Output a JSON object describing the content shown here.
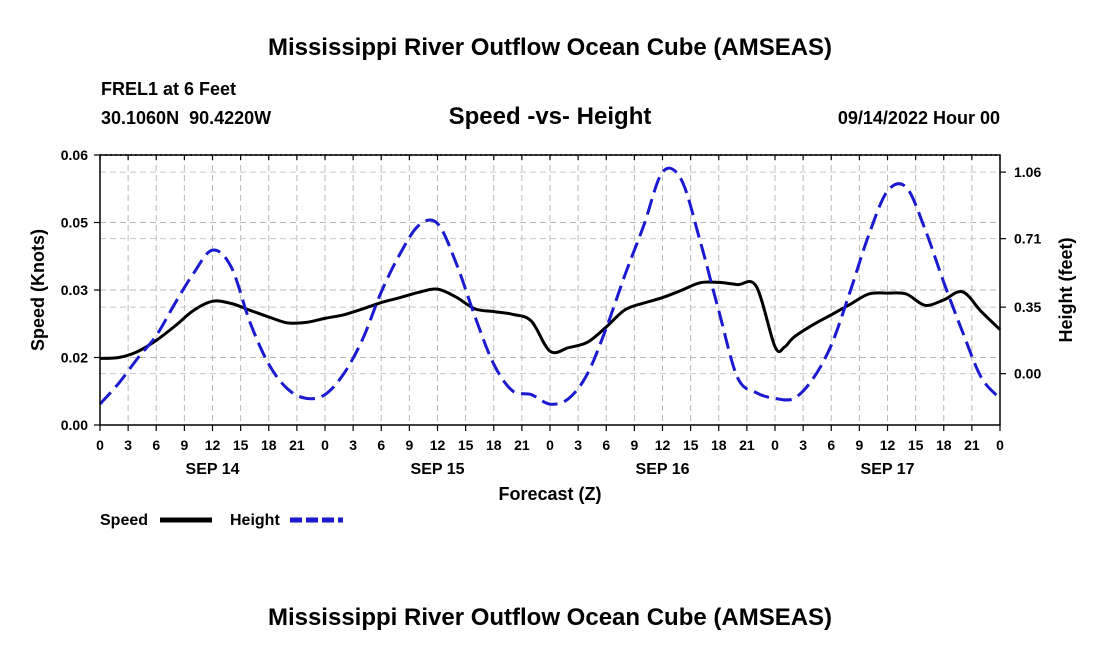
{
  "chart_data": {
    "type": "line",
    "title": "Mississippi River Outflow Ocean Cube (AMSEAS)",
    "footer_title": "Mississippi River Outflow Ocean Cube (AMSEAS)",
    "station": "FREL1 at 6 Feet",
    "coords": "30.1060N  90.4220W",
    "subtitle": "Speed -vs- Height",
    "datetime": "09/14/2022 Hour 00",
    "xlabel": "Forecast (Z)",
    "ylabel": "Speed (Knots)",
    "y2label": "Height (feet)",
    "xlim": [
      0,
      96
    ],
    "ylim": [
      0,
      0.06
    ],
    "y2lim": [
      -0.27,
      1.15
    ],
    "y_ticks": [
      "0.00",
      "0.02",
      "0.03",
      "0.05",
      "0.06"
    ],
    "y_tick_values": [
      0,
      0.015,
      0.03,
      0.045,
      0.06
    ],
    "y2_ticks": [
      "0.00",
      "0.35",
      "0.71",
      "1.06"
    ],
    "y2_tick_values": [
      0.0,
      0.35,
      0.71,
      1.06
    ],
    "x_ticks": [
      "0",
      "3",
      "6",
      "9",
      "12",
      "15",
      "18",
      "21",
      "0",
      "3",
      "6",
      "9",
      "12",
      "15",
      "18",
      "21",
      "0",
      "3",
      "6",
      "9",
      "12",
      "15",
      "18",
      "21",
      "0",
      "3",
      "6",
      "9",
      "12",
      "15",
      "18",
      "21",
      "0"
    ],
    "day_labels": [
      {
        "label": "SEP 14",
        "hour": 12
      },
      {
        "label": "SEP 15",
        "hour": 36
      },
      {
        "label": "SEP 16",
        "hour": 60
      },
      {
        "label": "SEP 17",
        "hour": 84
      }
    ],
    "series": [
      {
        "name": "Speed",
        "axis": "left",
        "color": "#000000",
        "x": [
          0,
          2,
          4,
          6,
          8,
          10,
          12,
          14,
          16,
          18,
          20,
          22,
          24,
          26,
          28,
          30,
          32,
          34,
          36,
          38,
          40,
          42,
          44,
          46,
          48,
          50,
          52,
          54,
          56,
          58,
          60,
          62,
          64,
          66,
          68,
          70,
          72,
          73,
          74,
          76,
          78,
          80,
          82,
          84,
          86,
          88,
          90,
          92,
          94,
          96
        ],
        "y": [
          0.0148,
          0.015,
          0.0163,
          0.0188,
          0.022,
          0.0255,
          0.0275,
          0.027,
          0.0255,
          0.024,
          0.0227,
          0.0228,
          0.0237,
          0.0245,
          0.0258,
          0.0272,
          0.0283,
          0.0295,
          0.0302,
          0.0284,
          0.0258,
          0.0252,
          0.0246,
          0.0231,
          0.0164,
          0.0172,
          0.0184,
          0.0218,
          0.0256,
          0.0271,
          0.0283,
          0.0299,
          0.0316,
          0.0317,
          0.0312,
          0.0308,
          0.0174,
          0.0173,
          0.0195,
          0.0222,
          0.0245,
          0.0268,
          0.0291,
          0.0293,
          0.0291,
          0.0266,
          0.0278,
          0.0296,
          0.0252,
          0.0212
        ]
      },
      {
        "name": "Height",
        "axis": "right",
        "color": "#1a1ad0",
        "x": [
          0,
          2,
          4,
          6,
          8,
          10,
          12,
          14,
          16,
          18,
          20,
          22,
          24,
          26,
          28,
          30,
          32,
          34,
          36,
          38,
          40,
          42,
          44,
          46,
          48,
          50,
          52,
          54,
          56,
          58,
          60,
          62,
          64,
          66,
          68,
          70,
          72,
          74,
          76,
          78,
          80,
          82,
          84,
          86,
          88,
          90,
          92,
          94,
          96
        ],
        "y": [
          -0.16,
          -0.05,
          0.08,
          0.2,
          0.37,
          0.53,
          0.65,
          0.56,
          0.27,
          0.05,
          -0.08,
          -0.13,
          -0.11,
          0.0,
          0.18,
          0.43,
          0.63,
          0.78,
          0.79,
          0.58,
          0.3,
          0.05,
          -0.09,
          -0.11,
          -0.16,
          -0.13,
          0.0,
          0.24,
          0.52,
          0.78,
          1.06,
          1.02,
          0.7,
          0.33,
          -0.02,
          -0.1,
          -0.13,
          -0.13,
          -0.03,
          0.15,
          0.43,
          0.73,
          0.96,
          0.98,
          0.76,
          0.48,
          0.22,
          -0.02,
          -0.13
        ]
      }
    ],
    "legend": [
      {
        "label": "Speed",
        "style": "solid"
      },
      {
        "label": "Height",
        "style": "dashed"
      }
    ]
  }
}
